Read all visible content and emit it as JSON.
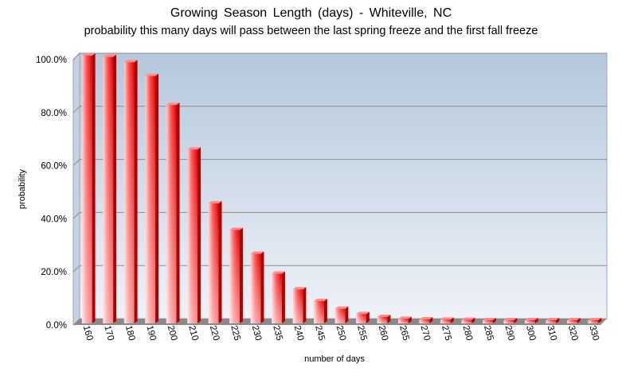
{
  "chart_data": {
    "type": "bar",
    "title": "Growing Season Length (days) - Whiteville, NC",
    "subtitle": "probability this many days will pass between the last spring freeze and the first fall freeze",
    "xlabel": "number of days",
    "ylabel": "probability",
    "ylim": [
      0,
      100
    ],
    "yticks": [
      "0.0%",
      "20.0%",
      "40.0%",
      "60.0%",
      "80.0%",
      "100.0%"
    ],
    "ytick_values": [
      0,
      20,
      40,
      60,
      80,
      100
    ],
    "grid": true,
    "legend": "none",
    "categories": [
      "160",
      "170",
      "180",
      "190",
      "200",
      "210",
      "220",
      "225",
      "230",
      "235",
      "240",
      "245",
      "250",
      "255",
      "260",
      "265",
      "270",
      "275",
      "280",
      "285",
      "290",
      "300",
      "310",
      "320",
      "330"
    ],
    "values": [
      100,
      99.5,
      97.5,
      92.3,
      81.4,
      64.6,
      44.3,
      34.3,
      25.3,
      17.8,
      11.9,
      7.5,
      4.6,
      2.6,
      1.5,
      0.8,
      0.6,
      0.5,
      0.4,
      0.3,
      0.3,
      0.3,
      0.3,
      0.3,
      0.3
    ],
    "colors": {
      "bar": "#ff2a2a",
      "plot_top": "#b4c8dc",
      "plot_bottom": "#eef2f8"
    }
  }
}
